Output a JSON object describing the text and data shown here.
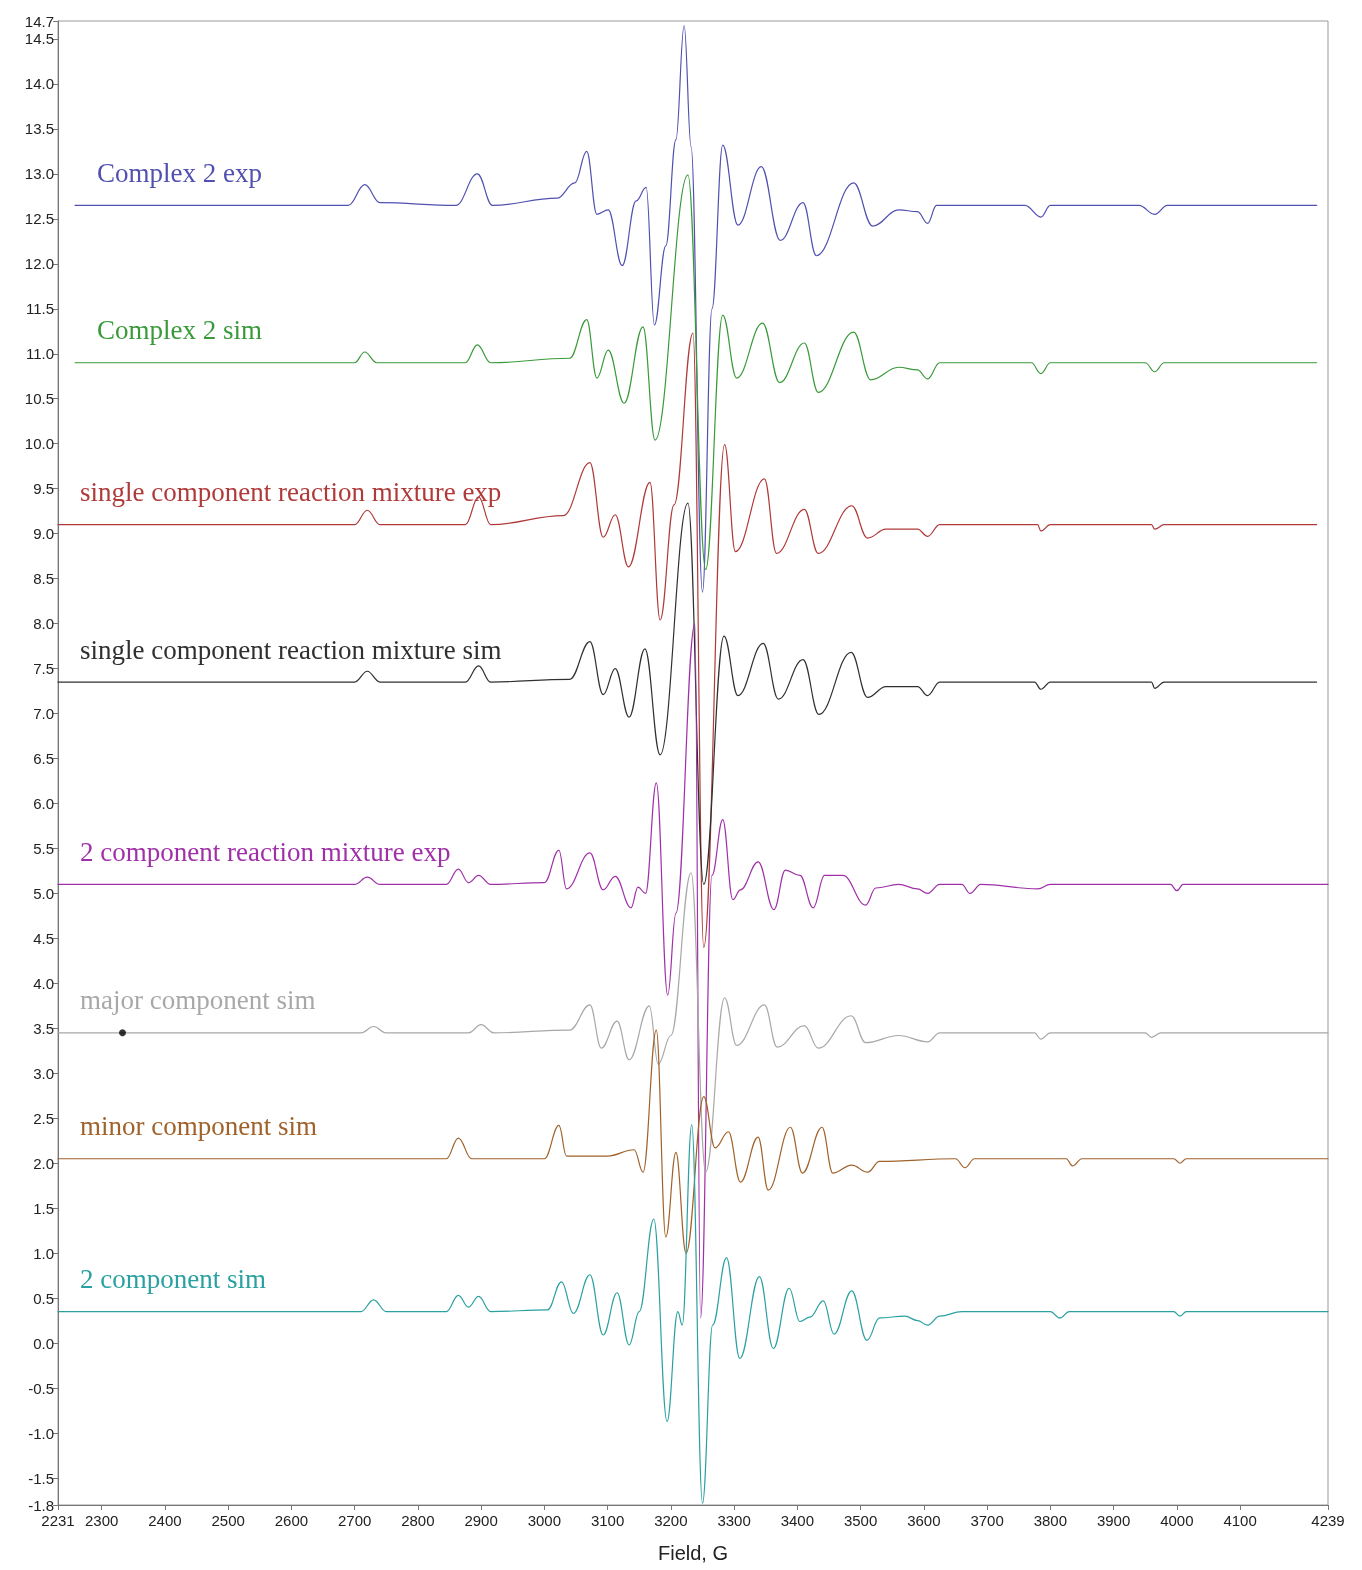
{
  "chart_data": {
    "type": "line",
    "xlabel": "Field, G",
    "xlim": [
      2231,
      4239
    ],
    "xticks": [
      2231,
      2300,
      2400,
      2500,
      2600,
      2700,
      2800,
      2900,
      3000,
      3100,
      3200,
      3300,
      3400,
      3500,
      3600,
      3700,
      3800,
      3900,
      4000,
      4100,
      4239
    ],
    "ylim": [
      -1.8,
      14.7
    ],
    "yticks": [
      -1.8,
      -1.5,
      {
        "value": -1,
        "label": "-1.0"
      },
      -0.5,
      {
        "value": 0,
        "label": "0.0"
      },
      0.5,
      {
        "value": 1,
        "label": "1.0"
      },
      1.5,
      {
        "value": 2,
        "label": "2.0"
      },
      2.5,
      {
        "value": 3,
        "label": "3.0"
      },
      3.5,
      {
        "value": 4,
        "label": "4.0"
      },
      4.5,
      {
        "value": 5,
        "label": "5.0"
      },
      5.5,
      {
        "value": 6,
        "label": "6.0"
      },
      6.5,
      {
        "value": 7,
        "label": "7.0"
      },
      7.5,
      {
        "value": 8,
        "label": "8.0"
      },
      8.5,
      {
        "value": 9,
        "label": "9.0"
      },
      9.5,
      {
        "value": 10,
        "label": "10.0"
      },
      10.5,
      {
        "value": 11,
        "label": "11.0"
      },
      11.5,
      {
        "value": 12,
        "label": "12.0"
      },
      12.5,
      {
        "value": 13,
        "label": "13.0"
      },
      13.5,
      {
        "value": 14,
        "label": "14.0"
      },
      14.5,
      14.7
    ],
    "marker": "none",
    "line_style": "solid",
    "series": [
      {
        "name": "Complex 2 exp",
        "color": "#5050b0",
        "x": [
          2258,
          2690,
          2716,
          2740,
          2860,
          2894,
          2918,
          3020,
          3048,
          3067,
          3083,
          3101,
          3123,
          3145,
          3161,
          3174,
          3192,
          3208,
          3221,
          3232,
          3250,
          3265,
          3282,
          3306,
          3343,
          3373,
          3409,
          3430,
          3489,
          3519,
          3560,
          3590,
          3606,
          3620,
          3760,
          3785,
          3800,
          3940,
          3965,
          3985,
          4221
        ],
        "values": [
          12.65,
          12.65,
          12.88,
          12.68,
          12.65,
          13.0,
          12.65,
          12.73,
          12.9,
          13.25,
          12.55,
          12.6,
          11.98,
          12.7,
          12.85,
          11.32,
          12.2,
          13.38,
          14.65,
          13.3,
          8.35,
          11.5,
          13.32,
          12.43,
          13.08,
          12.26,
          12.68,
          12.09,
          12.9,
          12.42,
          12.6,
          12.58,
          12.45,
          12.65,
          12.65,
          12.52,
          12.65,
          12.65,
          12.55,
          12.65,
          12.65
        ]
      },
      {
        "name": "Complex 2 sim",
        "color": "#3a9a3a",
        "x": [
          2258,
          2700,
          2716,
          2735,
          2875,
          2894,
          2915,
          3040,
          3067,
          3083,
          3101,
          3126,
          3156,
          3175,
          3227,
          3255,
          3282,
          3304,
          3345,
          3372,
          3411,
          3433,
          3489,
          3516,
          3560,
          3590,
          3606,
          3625,
          3770,
          3785,
          3800,
          3950,
          3965,
          3980,
          4221
        ],
        "values": [
          10.9,
          10.9,
          11.02,
          10.9,
          10.9,
          11.1,
          10.9,
          10.95,
          11.38,
          10.73,
          11.04,
          10.45,
          11.3,
          10.04,
          12.99,
          8.6,
          11.43,
          10.73,
          11.34,
          10.68,
          11.12,
          10.57,
          11.24,
          10.71,
          10.85,
          10.82,
          10.72,
          10.9,
          10.9,
          10.78,
          10.9,
          10.9,
          10.8,
          10.9,
          10.9
        ]
      },
      {
        "name": "single component reaction mixture exp",
        "color": "#b03a3a",
        "x": [
          2231,
          2700,
          2720,
          2740,
          2875,
          2896,
          2915,
          3030,
          3072,
          3093,
          3112,
          3133,
          3167,
          3183,
          3205,
          3235,
          3252,
          3285,
          3302,
          3348,
          3367,
          3411,
          3433,
          3486,
          3511,
          3540,
          3590,
          3606,
          3625,
          3780,
          3785,
          3800,
          3960,
          3965,
          3980,
          4221
        ],
        "values": [
          9.1,
          9.1,
          9.26,
          9.1,
          9.1,
          9.41,
          9.1,
          9.2,
          9.79,
          8.96,
          9.21,
          8.63,
          9.57,
          8.04,
          9.32,
          11.23,
          4.4,
          9.99,
          8.8,
          9.61,
          8.78,
          9.27,
          8.78,
          9.31,
          8.95,
          9.05,
          9.05,
          8.97,
          9.1,
          9.1,
          9.03,
          9.1,
          9.1,
          9.05,
          9.1,
          9.1
        ]
      },
      {
        "name": "single component reaction mixture sim",
        "color": "#303030",
        "x": [
          2231,
          2700,
          2720,
          2740,
          2875,
          2896,
          2915,
          3040,
          3072,
          3093,
          3112,
          3134,
          3159,
          3183,
          3227,
          3252,
          3284,
          3306,
          3346,
          3370,
          3409,
          3434,
          3485,
          3511,
          3540,
          3590,
          3606,
          3625,
          3775,
          3785,
          3800,
          3960,
          3965,
          3980,
          4221
        ],
        "values": [
          7.35,
          7.35,
          7.47,
          7.35,
          7.35,
          7.53,
          7.35,
          7.38,
          7.8,
          7.21,
          7.5,
          6.96,
          7.72,
          6.54,
          9.34,
          5.1,
          7.86,
          7.2,
          7.78,
          7.16,
          7.6,
          6.99,
          7.68,
          7.18,
          7.3,
          7.3,
          7.2,
          7.35,
          7.35,
          7.27,
          7.35,
          7.35,
          7.28,
          7.35,
          7.35
        ]
      },
      {
        "name": "2 component reaction mixture exp",
        "color": "#a030a8",
        "x": [
          2231,
          2700,
          2720,
          2740,
          2845,
          2864,
          2880,
          2896,
          2915,
          3000,
          3023,
          3035,
          3072,
          3093,
          3112,
          3137,
          3148,
          3160,
          3177,
          3195,
          3208,
          3238,
          3247,
          3265,
          3282,
          3298,
          3310,
          3338,
          3363,
          3381,
          3404,
          3425,
          3443,
          3472,
          3508,
          3524,
          3560,
          3590,
          3606,
          3625,
          3660,
          3673,
          3690,
          3780,
          3800,
          3990,
          4000,
          4010,
          4239
        ],
        "values": [
          5.1,
          5.1,
          5.18,
          5.1,
          5.1,
          5.27,
          5.12,
          5.2,
          5.1,
          5.12,
          5.48,
          5.05,
          5.45,
          5.04,
          5.19,
          4.84,
          5.07,
          5.0,
          6.23,
          3.87,
          4.78,
          8.0,
          0.28,
          5.2,
          5.82,
          4.93,
          5.04,
          5.35,
          4.82,
          5.26,
          5.2,
          4.84,
          5.2,
          5.2,
          4.87,
          5.06,
          5.1,
          5.05,
          5.0,
          5.1,
          5.1,
          5.0,
          5.1,
          5.05,
          5.1,
          5.1,
          5.03,
          5.1,
          5.1
        ]
      },
      {
        "name": "major component sim",
        "color": "#a8a8a8",
        "x": [
          2231,
          2710,
          2730,
          2750,
          2880,
          2900,
          2920,
          3040,
          3072,
          3090,
          3115,
          3134,
          3166,
          3180,
          3200,
          3232,
          3255,
          3285,
          3304,
          3348,
          3368,
          3411,
          3433,
          3485,
          3508,
          3560,
          3606,
          3625,
          3775,
          3785,
          3800,
          3950,
          3960,
          3975,
          4239
        ],
        "values": [
          3.45,
          3.45,
          3.52,
          3.45,
          3.45,
          3.54,
          3.45,
          3.48,
          3.76,
          3.28,
          3.58,
          3.15,
          3.75,
          3.1,
          3.42,
          5.23,
          1.9,
          3.84,
          3.31,
          3.76,
          3.29,
          3.53,
          3.28,
          3.64,
          3.34,
          3.42,
          3.35,
          3.45,
          3.45,
          3.38,
          3.45,
          3.45,
          3.4,
          3.45,
          3.45
        ]
      },
      {
        "name": "minor component sim",
        "color": "#a0622a",
        "x": [
          2231,
          2845,
          2864,
          2885,
          3000,
          3023,
          3035,
          3100,
          3142,
          3156,
          3177,
          3192,
          3208,
          3224,
          3252,
          3270,
          3291,
          3310,
          3338,
          3354,
          3389,
          3408,
          3439,
          3456,
          3486,
          3511,
          3530,
          3650,
          3665,
          3680,
          3825,
          3835,
          3850,
          3995,
          4005,
          4015,
          4239
        ],
        "values": [
          2.05,
          2.05,
          2.28,
          2.05,
          2.05,
          2.42,
          2.08,
          2.08,
          2.15,
          1.9,
          3.48,
          1.18,
          2.12,
          1.0,
          2.74,
          2.17,
          2.35,
          1.79,
          2.29,
          1.7,
          2.4,
          1.89,
          2.4,
          1.89,
          1.98,
          1.9,
          2.02,
          2.05,
          1.95,
          2.05,
          2.05,
          1.97,
          2.05,
          2.05,
          2.0,
          2.05,
          2.05
        ]
      },
      {
        "name": "2 component sim",
        "color": "#2aa0a0",
        "x": [
          2231,
          2710,
          2730,
          2750,
          2845,
          2864,
          2880,
          2896,
          2915,
          3005,
          3027,
          3046,
          3072,
          3093,
          3115,
          3134,
          3150,
          3173,
          3194,
          3211,
          3218,
          3233,
          3250,
          3266,
          3288,
          3309,
          3340,
          3362,
          3387,
          3404,
          3420,
          3441,
          3458,
          3486,
          3510,
          3530,
          3570,
          3590,
          3606,
          3625,
          3660,
          3800,
          3815,
          3830,
          3995,
          4005,
          4015,
          4239
        ],
        "values": [
          0.35,
          0.35,
          0.48,
          0.35,
          0.35,
          0.53,
          0.4,
          0.52,
          0.35,
          0.37,
          0.68,
          0.33,
          0.76,
          0.09,
          0.56,
          -0.02,
          0.35,
          1.38,
          -0.87,
          0.35,
          0.2,
          2.43,
          -1.78,
          0.2,
          0.95,
          -0.17,
          0.74,
          -0.06,
          0.61,
          0.24,
          0.29,
          0.47,
          0.1,
          0.58,
          0.03,
          0.28,
          0.3,
          0.25,
          0.2,
          0.3,
          0.35,
          0.35,
          0.28,
          0.35,
          0.35,
          0.3,
          0.35,
          0.35
        ]
      },
      {
        "type": "scatter",
        "color": "#000000",
        "marker": "circle",
        "x": [
          2333
        ],
        "values": [
          3.45
        ]
      }
    ]
  }
}
